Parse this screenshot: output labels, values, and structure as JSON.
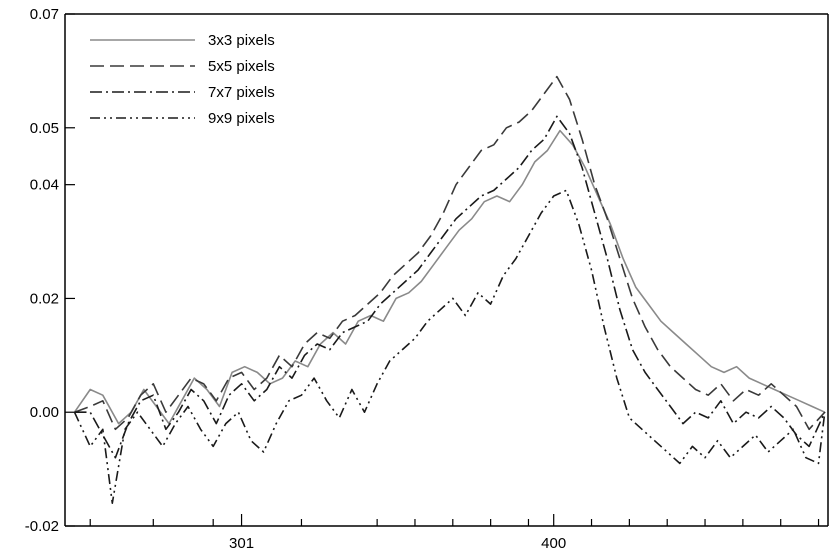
{
  "chart_data": {
    "type": "line",
    "title": "",
    "xlabel": "",
    "ylabel": "",
    "xlim": [
      245,
      487
    ],
    "ylim": [
      -0.02,
      0.07
    ],
    "x_ticks": [
      {
        "value": 301,
        "label": "301"
      },
      {
        "value": 400,
        "label": "400"
      }
    ],
    "x_minor_ticks": [
      253,
      273,
      292,
      320,
      344,
      356,
      368,
      380,
      392,
      412,
      424,
      436,
      448,
      460,
      472,
      484
    ],
    "y_ticks": [
      {
        "value": 0.07,
        "label": "0.07"
      },
      {
        "value": 0.05,
        "label": "0.05"
      },
      {
        "value": 0.04,
        "label": "0.04"
      },
      {
        "value": 0.02,
        "label": "0.02"
      },
      {
        "value": 0.0,
        "label": "0.00"
      },
      {
        "value": -0.02,
        "label": "-0.02"
      }
    ],
    "grid": false,
    "legend": "top-left",
    "series": [
      {
        "name": "3x3 pixels",
        "color": "#8a8a8a",
        "dash": "",
        "points": [
          [
            248,
            0
          ],
          [
            253,
            0.004
          ],
          [
            257,
            0.003
          ],
          [
            262,
            -0.002
          ],
          [
            266,
            0.0
          ],
          [
            270,
            0.004
          ],
          [
            274,
            0.001
          ],
          [
            278,
            -0.002
          ],
          [
            282,
            0.002
          ],
          [
            286,
            0.006
          ],
          [
            290,
            0.004
          ],
          [
            294,
            0.001
          ],
          [
            298,
            0.007
          ],
          [
            302,
            0.008
          ],
          [
            306,
            0.007
          ],
          [
            310,
            0.005
          ],
          [
            314,
            0.006
          ],
          [
            318,
            0.009
          ],
          [
            322,
            0.008
          ],
          [
            326,
            0.012
          ],
          [
            330,
            0.014
          ],
          [
            334,
            0.012
          ],
          [
            338,
            0.016
          ],
          [
            342,
            0.017
          ],
          [
            346,
            0.016
          ],
          [
            350,
            0.02
          ],
          [
            354,
            0.021
          ],
          [
            358,
            0.023
          ],
          [
            362,
            0.026
          ],
          [
            366,
            0.029
          ],
          [
            370,
            0.032
          ],
          [
            374,
            0.034
          ],
          [
            378,
            0.037
          ],
          [
            382,
            0.038
          ],
          [
            386,
            0.037
          ],
          [
            390,
            0.04
          ],
          [
            394,
            0.044
          ],
          [
            398,
            0.046
          ],
          [
            402,
            0.0495
          ],
          [
            406,
            0.047
          ],
          [
            410,
            0.043
          ],
          [
            414,
            0.038
          ],
          [
            418,
            0.033
          ],
          [
            422,
            0.027
          ],
          [
            426,
            0.022
          ],
          [
            430,
            0.019
          ],
          [
            434,
            0.016
          ],
          [
            438,
            0.014
          ],
          [
            442,
            0.012
          ],
          [
            446,
            0.01
          ],
          [
            450,
            0.008
          ],
          [
            454,
            0.007
          ],
          [
            458,
            0.008
          ],
          [
            462,
            0.006
          ],
          [
            466,
            0.005
          ],
          [
            470,
            0.004
          ],
          [
            474,
            0.003
          ],
          [
            478,
            0.002
          ],
          [
            482,
            0.001
          ],
          [
            486,
            0.0
          ]
        ]
      },
      {
        "name": "5x5 pixels",
        "color": "#3a3a3a",
        "dash": "14 6",
        "points": [
          [
            248,
            0
          ],
          [
            253,
            0.001
          ],
          [
            257,
            0.002
          ],
          [
            261,
            -0.003
          ],
          [
            265,
            -0.001
          ],
          [
            269,
            0.003
          ],
          [
            273,
            0.005
          ],
          [
            277,
            0.0
          ],
          [
            281,
            0.003
          ],
          [
            285,
            0.006
          ],
          [
            289,
            0.005
          ],
          [
            293,
            0.002
          ],
          [
            297,
            0.006
          ],
          [
            301,
            0.007
          ],
          [
            305,
            0.004
          ],
          [
            309,
            0.006
          ],
          [
            313,
            0.01
          ],
          [
            317,
            0.008
          ],
          [
            321,
            0.012
          ],
          [
            325,
            0.014
          ],
          [
            329,
            0.013
          ],
          [
            333,
            0.016
          ],
          [
            337,
            0.017
          ],
          [
            341,
            0.019
          ],
          [
            345,
            0.021
          ],
          [
            349,
            0.024
          ],
          [
            353,
            0.026
          ],
          [
            357,
            0.028
          ],
          [
            361,
            0.031
          ],
          [
            365,
            0.035
          ],
          [
            369,
            0.04
          ],
          [
            373,
            0.043
          ],
          [
            377,
            0.046
          ],
          [
            381,
            0.047
          ],
          [
            385,
            0.05
          ],
          [
            389,
            0.051
          ],
          [
            393,
            0.053
          ],
          [
            397,
            0.056
          ],
          [
            401,
            0.059
          ],
          [
            405,
            0.055
          ],
          [
            409,
            0.048
          ],
          [
            413,
            0.04
          ],
          [
            417,
            0.034
          ],
          [
            421,
            0.027
          ],
          [
            425,
            0.02
          ],
          [
            429,
            0.015
          ],
          [
            433,
            0.011
          ],
          [
            437,
            0.008
          ],
          [
            441,
            0.006
          ],
          [
            445,
            0.004
          ],
          [
            449,
            0.003
          ],
          [
            453,
            0.005
          ],
          [
            457,
            0.002
          ],
          [
            461,
            0.004
          ],
          [
            465,
            0.003
          ],
          [
            469,
            0.005
          ],
          [
            473,
            0.003
          ],
          [
            477,
            0.001
          ],
          [
            481,
            -0.003
          ],
          [
            486,
            0.0
          ]
        ]
      },
      {
        "name": "7x7 pixels",
        "color": "#1a1a1a",
        "dash": "12 4 2 4",
        "points": [
          [
            248,
            0
          ],
          [
            253,
            0.0
          ],
          [
            257,
            -0.004
          ],
          [
            261,
            -0.008
          ],
          [
            265,
            -0.002
          ],
          [
            269,
            0.002
          ],
          [
            273,
            0.003
          ],
          [
            277,
            -0.003
          ],
          [
            281,
            0.0
          ],
          [
            285,
            0.004
          ],
          [
            289,
            0.002
          ],
          [
            293,
            -0.002
          ],
          [
            297,
            0.003
          ],
          [
            301,
            0.005
          ],
          [
            305,
            0.002
          ],
          [
            309,
            0.004
          ],
          [
            313,
            0.008
          ],
          [
            317,
            0.006
          ],
          [
            321,
            0.01
          ],
          [
            325,
            0.012
          ],
          [
            329,
            0.011
          ],
          [
            333,
            0.014
          ],
          [
            337,
            0.015
          ],
          [
            341,
            0.016
          ],
          [
            345,
            0.019
          ],
          [
            349,
            0.021
          ],
          [
            353,
            0.023
          ],
          [
            357,
            0.025
          ],
          [
            361,
            0.028
          ],
          [
            365,
            0.031
          ],
          [
            369,
            0.034
          ],
          [
            373,
            0.036
          ],
          [
            377,
            0.038
          ],
          [
            381,
            0.039
          ],
          [
            385,
            0.041
          ],
          [
            389,
            0.043
          ],
          [
            393,
            0.046
          ],
          [
            397,
            0.048
          ],
          [
            401,
            0.052
          ],
          [
            405,
            0.049
          ],
          [
            409,
            0.043
          ],
          [
            413,
            0.035
          ],
          [
            417,
            0.027
          ],
          [
            421,
            0.018
          ],
          [
            425,
            0.011
          ],
          [
            429,
            0.007
          ],
          [
            433,
            0.004
          ],
          [
            437,
            0.001
          ],
          [
            441,
            -0.002
          ],
          [
            445,
            0.0
          ],
          [
            449,
            -0.001
          ],
          [
            453,
            0.002
          ],
          [
            457,
            -0.002
          ],
          [
            461,
            0.0
          ],
          [
            465,
            -0.001
          ],
          [
            469,
            0.001
          ],
          [
            473,
            -0.001
          ],
          [
            477,
            -0.004
          ],
          [
            481,
            -0.006
          ],
          [
            486,
            0.0
          ]
        ]
      },
      {
        "name": "9x9 pixels",
        "color": "#1a1a1a",
        "dash": "10 4 2 4 2 4",
        "points": [
          [
            248,
            0
          ],
          [
            253,
            -0.006
          ],
          [
            257,
            -0.003
          ],
          [
            260,
            -0.016
          ],
          [
            264,
            -0.003
          ],
          [
            268,
            0.0
          ],
          [
            272,
            -0.003
          ],
          [
            276,
            -0.006
          ],
          [
            280,
            -0.002
          ],
          [
            284,
            0.001
          ],
          [
            288,
            -0.003
          ],
          [
            292,
            -0.006
          ],
          [
            296,
            -0.002
          ],
          [
            300,
            0.0
          ],
          [
            304,
            -0.005
          ],
          [
            308,
            -0.007
          ],
          [
            312,
            -0.002
          ],
          [
            316,
            0.002
          ],
          [
            320,
            0.003
          ],
          [
            324,
            0.006
          ],
          [
            328,
            0.002
          ],
          [
            332,
            -0.001
          ],
          [
            336,
            0.004
          ],
          [
            340,
            0.0
          ],
          [
            344,
            0.005
          ],
          [
            348,
            0.009
          ],
          [
            352,
            0.011
          ],
          [
            356,
            0.013
          ],
          [
            360,
            0.016
          ],
          [
            364,
            0.018
          ],
          [
            368,
            0.02
          ],
          [
            372,
            0.017
          ],
          [
            376,
            0.021
          ],
          [
            380,
            0.019
          ],
          [
            384,
            0.024
          ],
          [
            388,
            0.027
          ],
          [
            392,
            0.031
          ],
          [
            396,
            0.035
          ],
          [
            400,
            0.038
          ],
          [
            404,
            0.039
          ],
          [
            408,
            0.033
          ],
          [
            412,
            0.025
          ],
          [
            416,
            0.015
          ],
          [
            420,
            0.006
          ],
          [
            424,
            -0.001
          ],
          [
            428,
            -0.003
          ],
          [
            432,
            -0.005
          ],
          [
            436,
            -0.007
          ],
          [
            440,
            -0.009
          ],
          [
            444,
            -0.006
          ],
          [
            448,
            -0.008
          ],
          [
            452,
            -0.005
          ],
          [
            456,
            -0.008
          ],
          [
            460,
            -0.006
          ],
          [
            464,
            -0.004
          ],
          [
            468,
            -0.007
          ],
          [
            472,
            -0.005
          ],
          [
            476,
            -0.003
          ],
          [
            480,
            -0.008
          ],
          [
            484,
            -0.009
          ],
          [
            486,
            0.0
          ]
        ]
      }
    ]
  }
}
